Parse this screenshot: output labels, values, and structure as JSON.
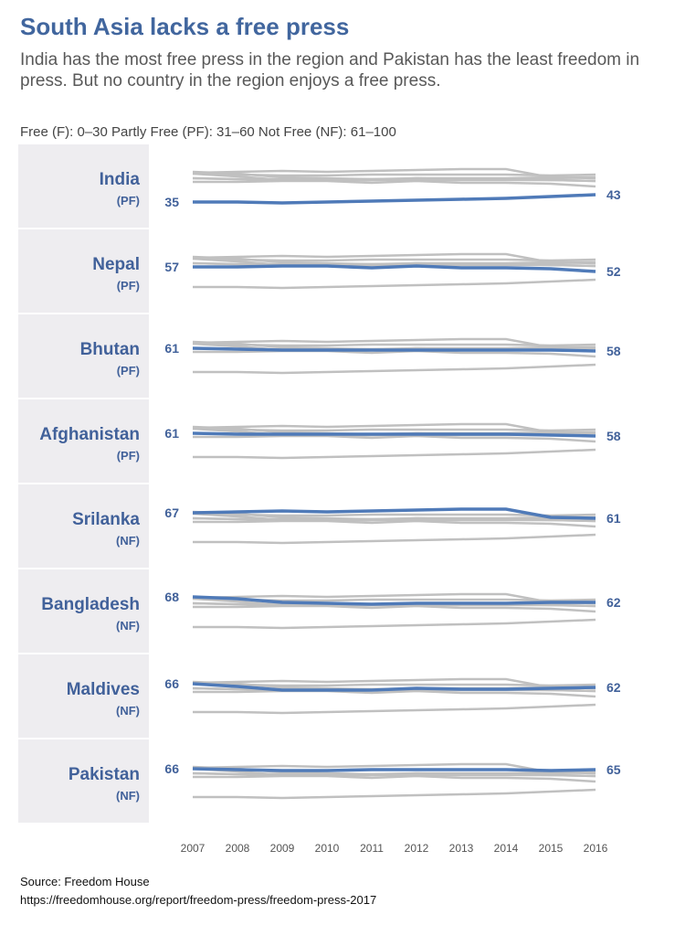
{
  "title": "South Asia lacks a free press",
  "subtitle": "India has the most free press in the region and Pakistan has the least freedom in press. But no country in the region enjoys a free press.",
  "legend_text": "Free (F): 0–30 Partly Free (PF): 31–60 Not Free (NF): 61–100",
  "source": {
    "line1": "Source: Freedom House",
    "line2": "https://freedomhouse.org/report/freedom-press/freedom-press-2017"
  },
  "colors": {
    "highlight": "#4f7ab8",
    "context": "#c0c0c0",
    "label": "#41619a",
    "panel_bg": "#eeedf0"
  },
  "chart_data": {
    "type": "line",
    "layout": "small-multiples",
    "x": [
      2007,
      2008,
      2009,
      2010,
      2011,
      2012,
      2013,
      2014,
      2015,
      2016
    ],
    "x_tick_labels": [
      "2007",
      "2008",
      "2009",
      "2010",
      "2011",
      "2012",
      "2013",
      "2014",
      "2015",
      "2016"
    ],
    "series": [
      {
        "name": "India",
        "status": "(PF)",
        "start_label": "35",
        "end_label": "43",
        "values": [
          35,
          35,
          34,
          35,
          36,
          37,
          38,
          39,
          41,
          43
        ]
      },
      {
        "name": "Nepal",
        "status": "(PF)",
        "start_label": "57",
        "end_label": "52",
        "values": [
          57,
          57,
          58,
          58,
          56,
          58,
          56,
          56,
          55,
          52
        ]
      },
      {
        "name": "Bhutan",
        "status": "(PF)",
        "start_label": "61",
        "end_label": "58",
        "values": [
          61,
          60,
          59,
          59,
          59,
          59,
          59,
          59,
          59,
          58
        ]
      },
      {
        "name": "Afghanistan",
        "status": "(PF)",
        "start_label": "61",
        "end_label": "58",
        "values": [
          61,
          60,
          60,
          60,
          60,
          60,
          60,
          60,
          59,
          58
        ]
      },
      {
        "name": "Srilanka",
        "status": "(NF)",
        "start_label": "67",
        "end_label": "61",
        "values": [
          67,
          68,
          69,
          68,
          69,
          70,
          71,
          71,
          62,
          61
        ]
      },
      {
        "name": "Bangladesh",
        "status": "(NF)",
        "start_label": "68",
        "end_label": "62",
        "values": [
          68,
          66,
          62,
          61,
          60,
          61,
          61,
          61,
          62,
          62
        ]
      },
      {
        "name": "Maldives",
        "status": "(NF)",
        "start_label": "66",
        "end_label": "62",
        "values": [
          66,
          63,
          59,
          59,
          59,
          61,
          60,
          60,
          61,
          62
        ]
      },
      {
        "name": "Pakistan",
        "status": "(NF)",
        "start_label": "66",
        "end_label": "65",
        "values": [
          66,
          65,
          64,
          64,
          65,
          65,
          65,
          65,
          64,
          65
        ]
      }
    ]
  }
}
